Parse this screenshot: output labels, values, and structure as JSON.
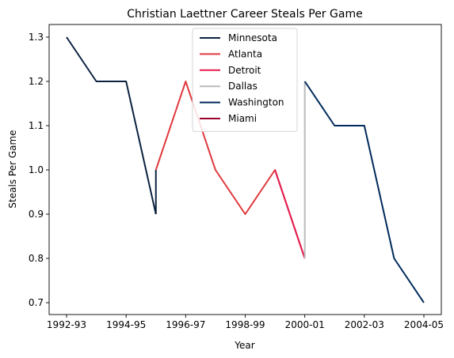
{
  "chart_data": {
    "type": "line",
    "title": "Christian Laettner Career Steals Per Game",
    "xlabel": "Year",
    "ylabel": "Steals Per Game",
    "x_ticks": [
      "1992-93",
      "1994-95",
      "1996-97",
      "1998-99",
      "2000-01",
      "2002-03",
      "2004-05"
    ],
    "y_ticks": [
      "0.7",
      "0.8",
      "0.9",
      "1.0",
      "1.1",
      "1.2",
      "1.3"
    ],
    "xlim": [
      "1992-93",
      "2004-05"
    ],
    "ylim": [
      0.7,
      1.3
    ],
    "grid": false,
    "legend_position": "top-center",
    "series": [
      {
        "name": "Minnesota",
        "color": "#0c2340",
        "points": [
          [
            "1992-93",
            1.3
          ],
          [
            "1993-94",
            1.2
          ],
          [
            "1994-95",
            1.2
          ],
          [
            "1995-96",
            0.9
          ]
        ]
      },
      {
        "name": "Atlanta",
        "color": "#e03a3e",
        "points": [
          [
            "1995-96",
            1.0
          ],
          [
            "1996-97",
            1.2
          ],
          [
            "1997-98",
            1.0
          ],
          [
            "1998-99",
            0.9
          ],
          [
            "1999-00",
            1.0
          ],
          [
            "2000-01",
            0.8
          ]
        ]
      },
      {
        "name": "Detroit",
        "color": "#e31d4f",
        "points": [
          [
            "1999-00",
            1.0
          ],
          [
            "2000-01",
            0.8
          ]
        ]
      },
      {
        "name": "Dallas",
        "color": "#bbbbbb",
        "points": [
          [
            "2000-01",
            0.8
          ],
          [
            "2000-01",
            1.2
          ]
        ]
      },
      {
        "name": "Washington",
        "color": "#002b5c",
        "points": [
          [
            "2000-01",
            1.2
          ],
          [
            "2001-02",
            1.1
          ],
          [
            "2002-03",
            1.1
          ],
          [
            "2003-04",
            0.8
          ],
          [
            "2004-05",
            0.7
          ]
        ]
      },
      {
        "name": "Miami",
        "color": "#98002e",
        "points": []
      }
    ],
    "connectors": [
      {
        "color": "#0c2340",
        "points": [
          [
            "1995-96",
            0.9
          ],
          [
            "1995-96",
            1.0
          ]
        ]
      }
    ]
  }
}
